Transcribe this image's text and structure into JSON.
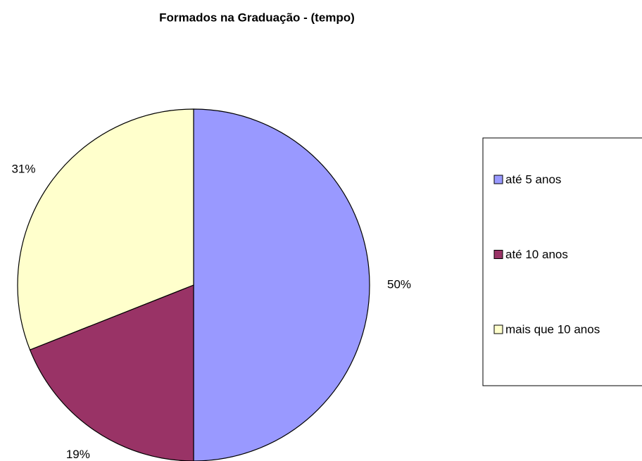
{
  "chart_data": {
    "type": "pie",
    "title": "Formados  na Graduação - (tempo)",
    "categories": [
      "até 5 anos",
      "até 10 anos",
      "mais que 10 anos"
    ],
    "values": [
      50,
      19,
      31
    ],
    "value_labels": [
      "50%",
      "19%",
      "31%"
    ],
    "colors": [
      "#9999ff",
      "#993366",
      "#ffffcc"
    ],
    "legend": "right"
  }
}
